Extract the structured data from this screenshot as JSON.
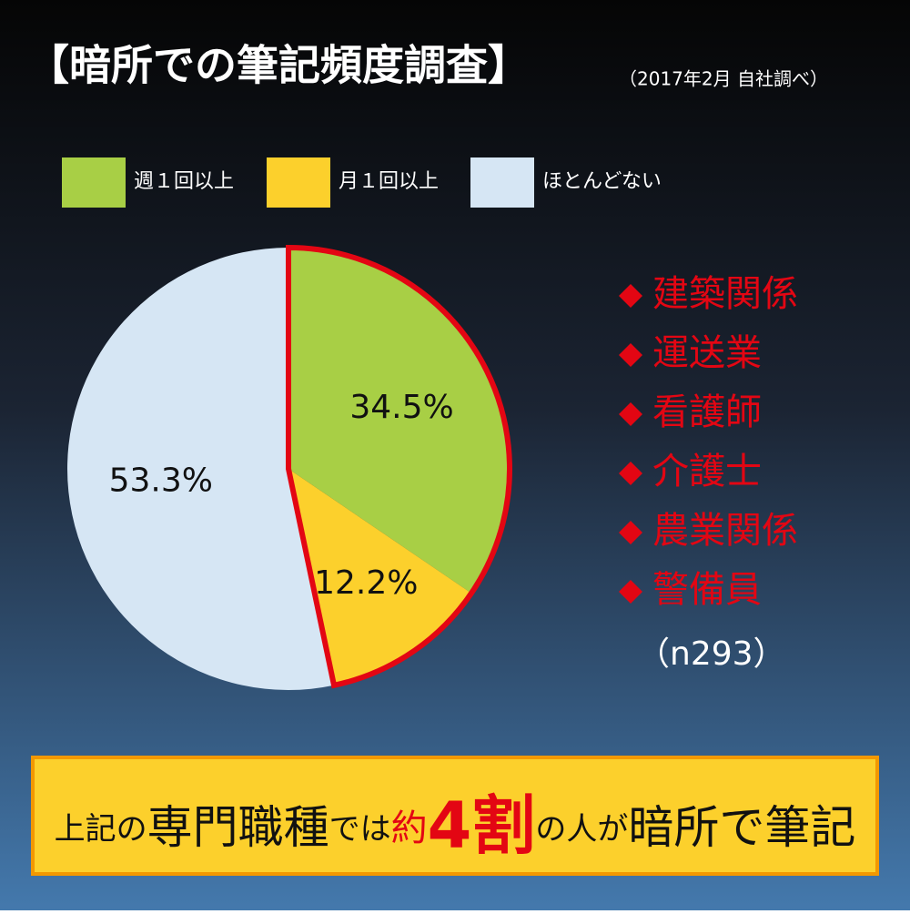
{
  "chart_data": {
    "type": "pie",
    "title": "【暗所での筆記頻度調査】",
    "subtitle": "（2017年2月 自社調べ）",
    "categories": [
      "週１回以上",
      "月１回以上",
      "ほとんどない"
    ],
    "values": [
      34.5,
      12.2,
      53.3
    ],
    "value_labels": [
      "34.5%",
      "12.2%",
      "53.3%"
    ],
    "colors": [
      "#a8cf45",
      "#fcd02c",
      "#d6e6f4"
    ],
    "legend": "top"
  },
  "occupations": {
    "items": [
      "建築関係",
      "運送業",
      "看護師",
      "介護士",
      "農業関係",
      "警備員"
    ],
    "sample": "（n293）"
  },
  "banner": {
    "parts": [
      "上記の",
      "専門職種",
      "では",
      "約",
      "4割",
      "の人が",
      "暗所で筆記"
    ]
  }
}
